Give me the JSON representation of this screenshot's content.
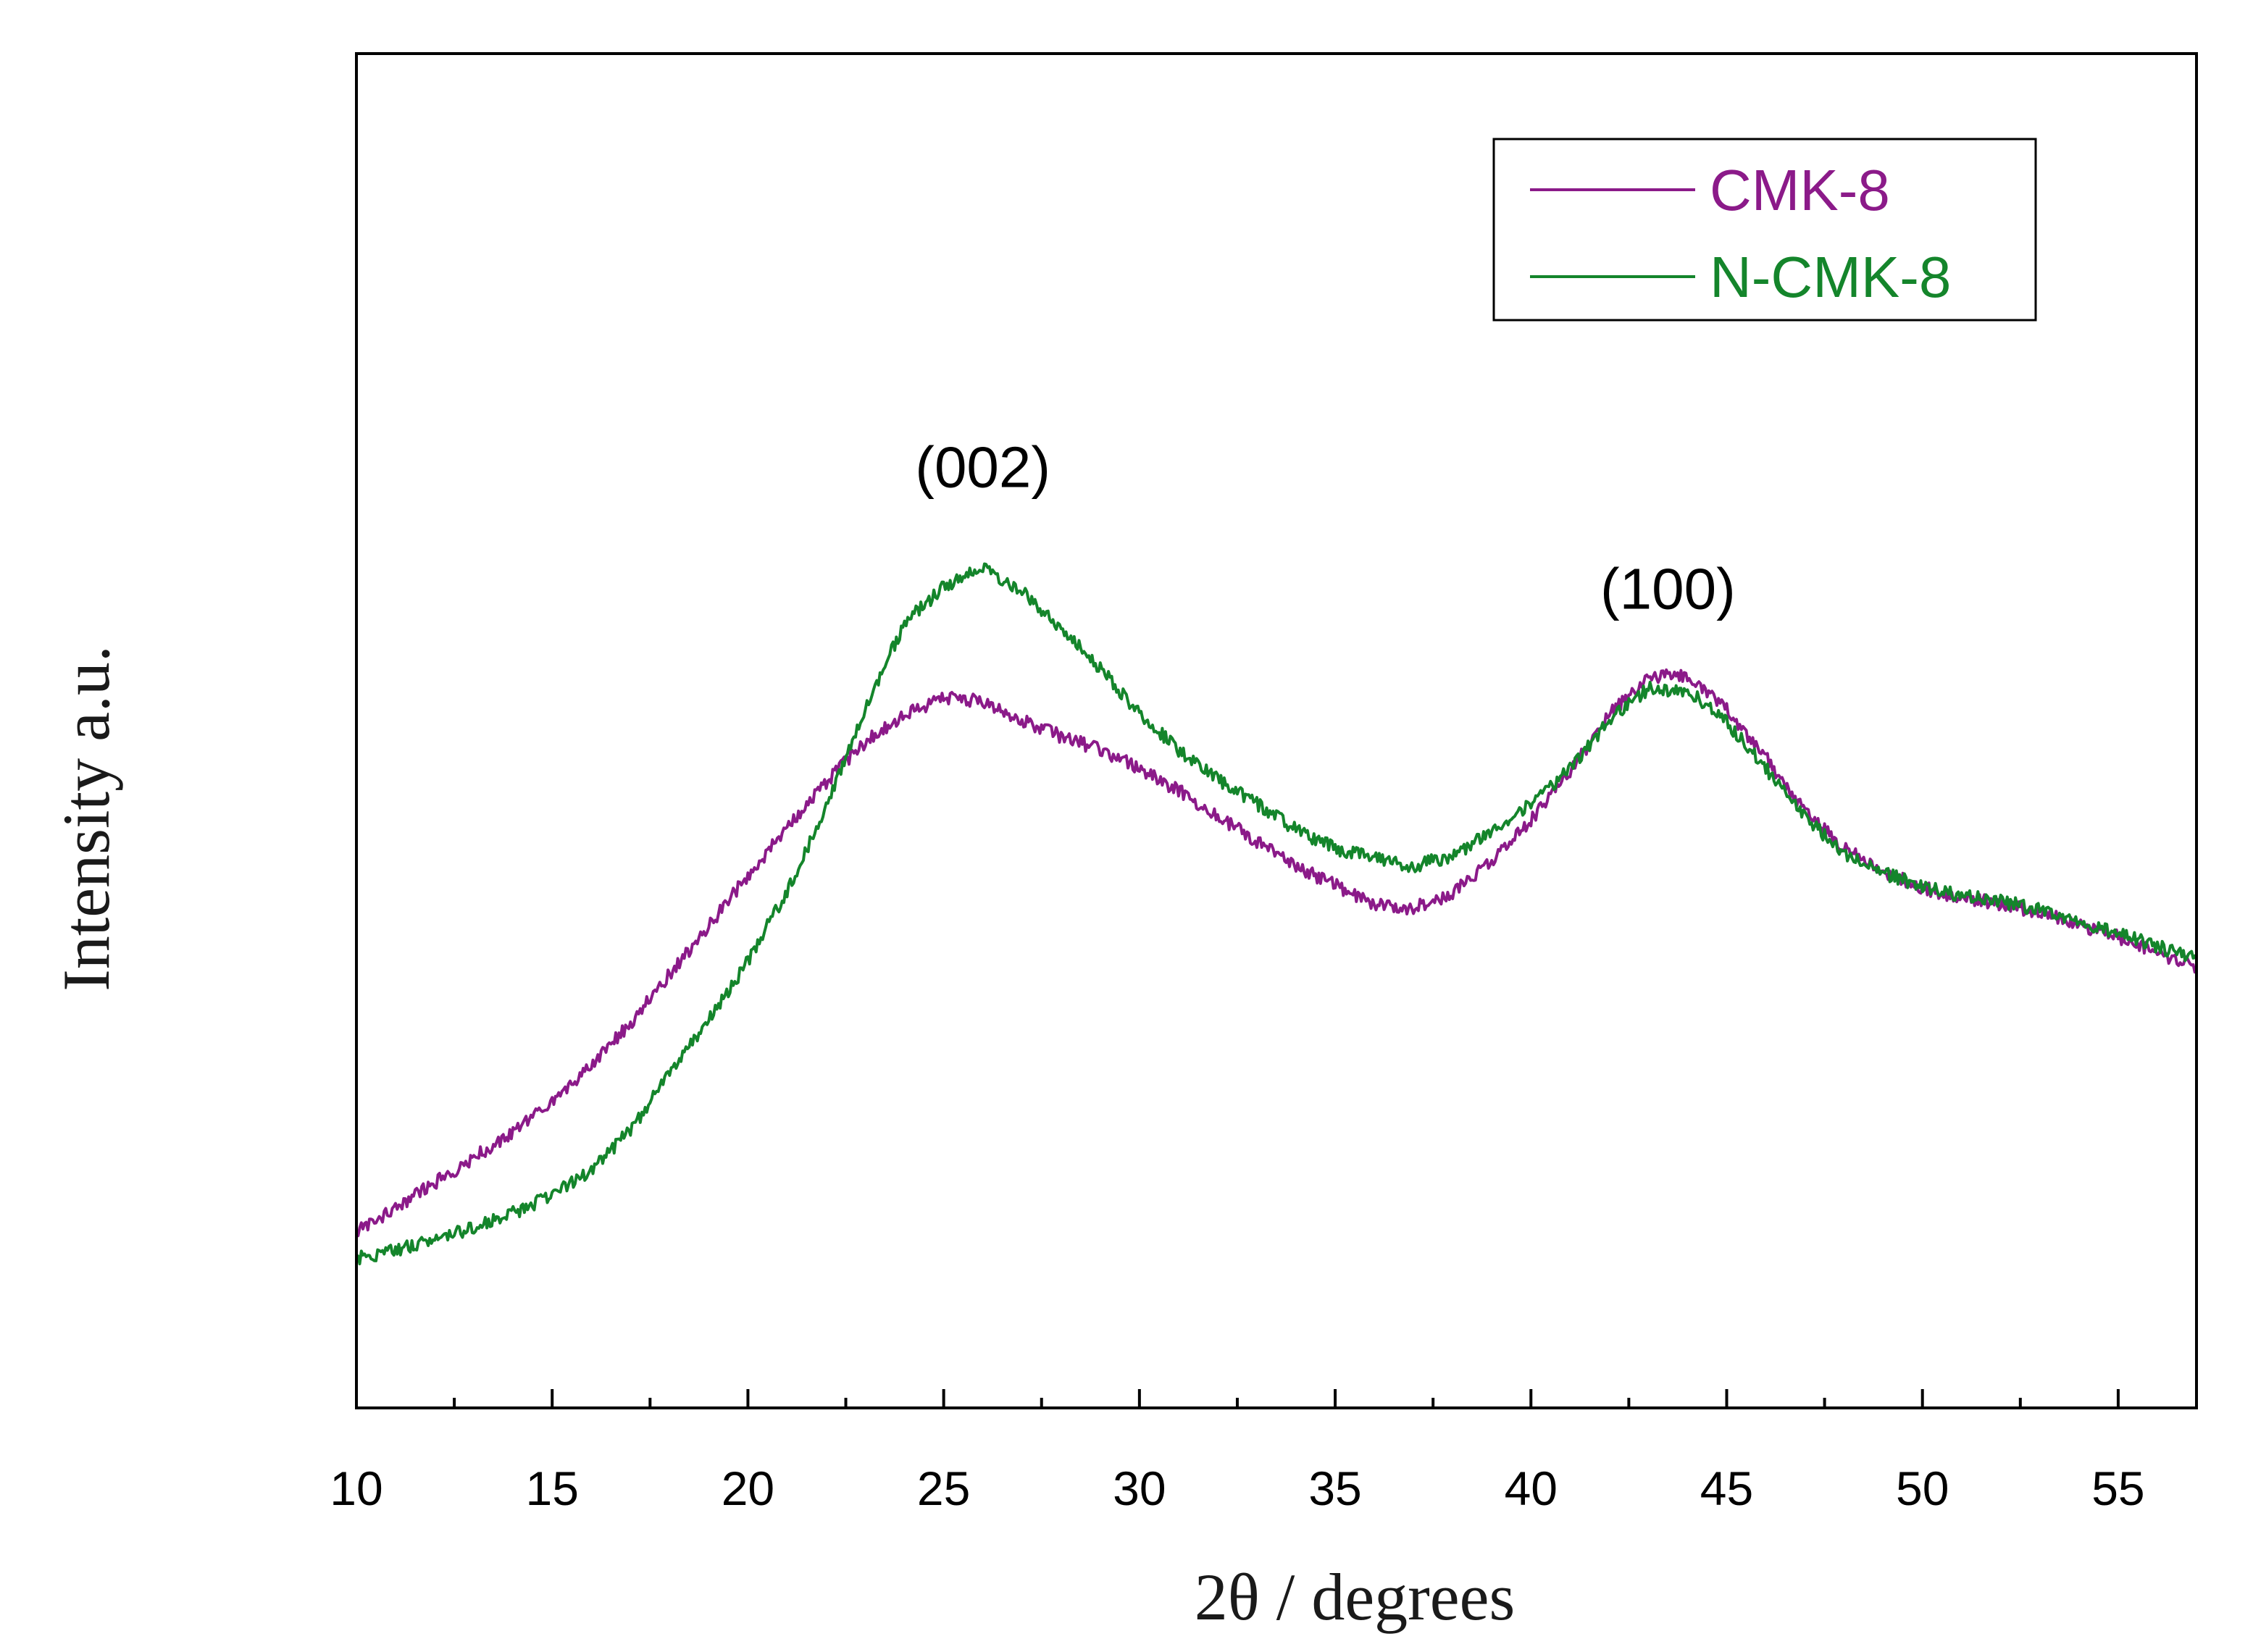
{
  "chart_data": {
    "type": "line",
    "title": "",
    "xlabel": "2θ / degrees",
    "ylabel": "Intensity a.u.",
    "xlim": [
      10,
      57
    ],
    "ylim": [
      0,
      100
    ],
    "xticks": [
      10,
      15,
      20,
      25,
      30,
      35,
      40,
      45,
      50,
      55
    ],
    "xtick_labels": [
      "10",
      "15",
      "20",
      "25",
      "30",
      "35",
      "40",
      "45",
      "50",
      "55"
    ],
    "yticks_shown": false,
    "grid": false,
    "legend_position": "top-right",
    "annotations": [
      {
        "text": "(002)",
        "x": 26.0,
        "y": 68.0
      },
      {
        "text": "(100)",
        "x": 43.5,
        "y": 59.0
      }
    ],
    "series": [
      {
        "name": "CMK-8",
        "color": "#8B1A89",
        "x": [
          10,
          11,
          12,
          13,
          14,
          15,
          16,
          17,
          18,
          19,
          20,
          21,
          22,
          23,
          24,
          25,
          26,
          27,
          28,
          29,
          30,
          31,
          32,
          33,
          34,
          35,
          36,
          37,
          38,
          39,
          40,
          41,
          42,
          43,
          44,
          45,
          46,
          47,
          48,
          49,
          50,
          51,
          52,
          53,
          54,
          55,
          56,
          57
        ],
        "y": [
          13.0,
          14.8,
          16.6,
          18.5,
          20.4,
          22.6,
          25.3,
          28.4,
          32.0,
          35.6,
          39.3,
          42.8,
          46.2,
          49.2,
          51.2,
          52.4,
          52.2,
          50.8,
          49.6,
          48.6,
          47.2,
          45.6,
          43.7,
          41.8,
          40.0,
          38.6,
          37.2,
          36.9,
          38.0,
          40.4,
          43.4,
          47.0,
          51.2,
          54.0,
          54.0,
          51.6,
          48.0,
          44.0,
          41.3,
          39.6,
          38.4,
          37.7,
          37.2,
          36.6,
          35.7,
          34.8,
          33.6,
          32.6
        ]
      },
      {
        "name": "N-CMK-8",
        "color": "#14852B",
        "x": [
          10,
          11,
          12,
          13,
          14,
          15,
          16,
          17,
          18,
          19,
          20,
          21,
          22,
          23,
          24,
          25,
          26,
          27,
          28,
          29,
          30,
          31,
          32,
          33,
          34,
          35,
          36,
          37,
          38,
          39,
          40,
          41,
          42,
          43,
          44,
          45,
          46,
          47,
          48,
          49,
          50,
          51,
          52,
          53,
          54,
          55,
          56,
          57
        ],
        "y": [
          11.0,
          11.7,
          12.4,
          13.3,
          14.4,
          15.7,
          17.6,
          20.5,
          24.6,
          28.6,
          33.0,
          38.2,
          44.4,
          51.6,
          58.0,
          60.6,
          62.0,
          60.4,
          57.6,
          54.6,
          51.2,
          48.6,
          46.4,
          44.6,
          42.7,
          41.3,
          40.6,
          40.0,
          40.8,
          42.5,
          44.6,
          47.2,
          50.8,
          53.1,
          53.0,
          50.6,
          47.2,
          43.6,
          41.0,
          39.5,
          38.5,
          37.8,
          37.4,
          36.8,
          35.9,
          35.1,
          34.1,
          33.1
        ]
      }
    ]
  }
}
